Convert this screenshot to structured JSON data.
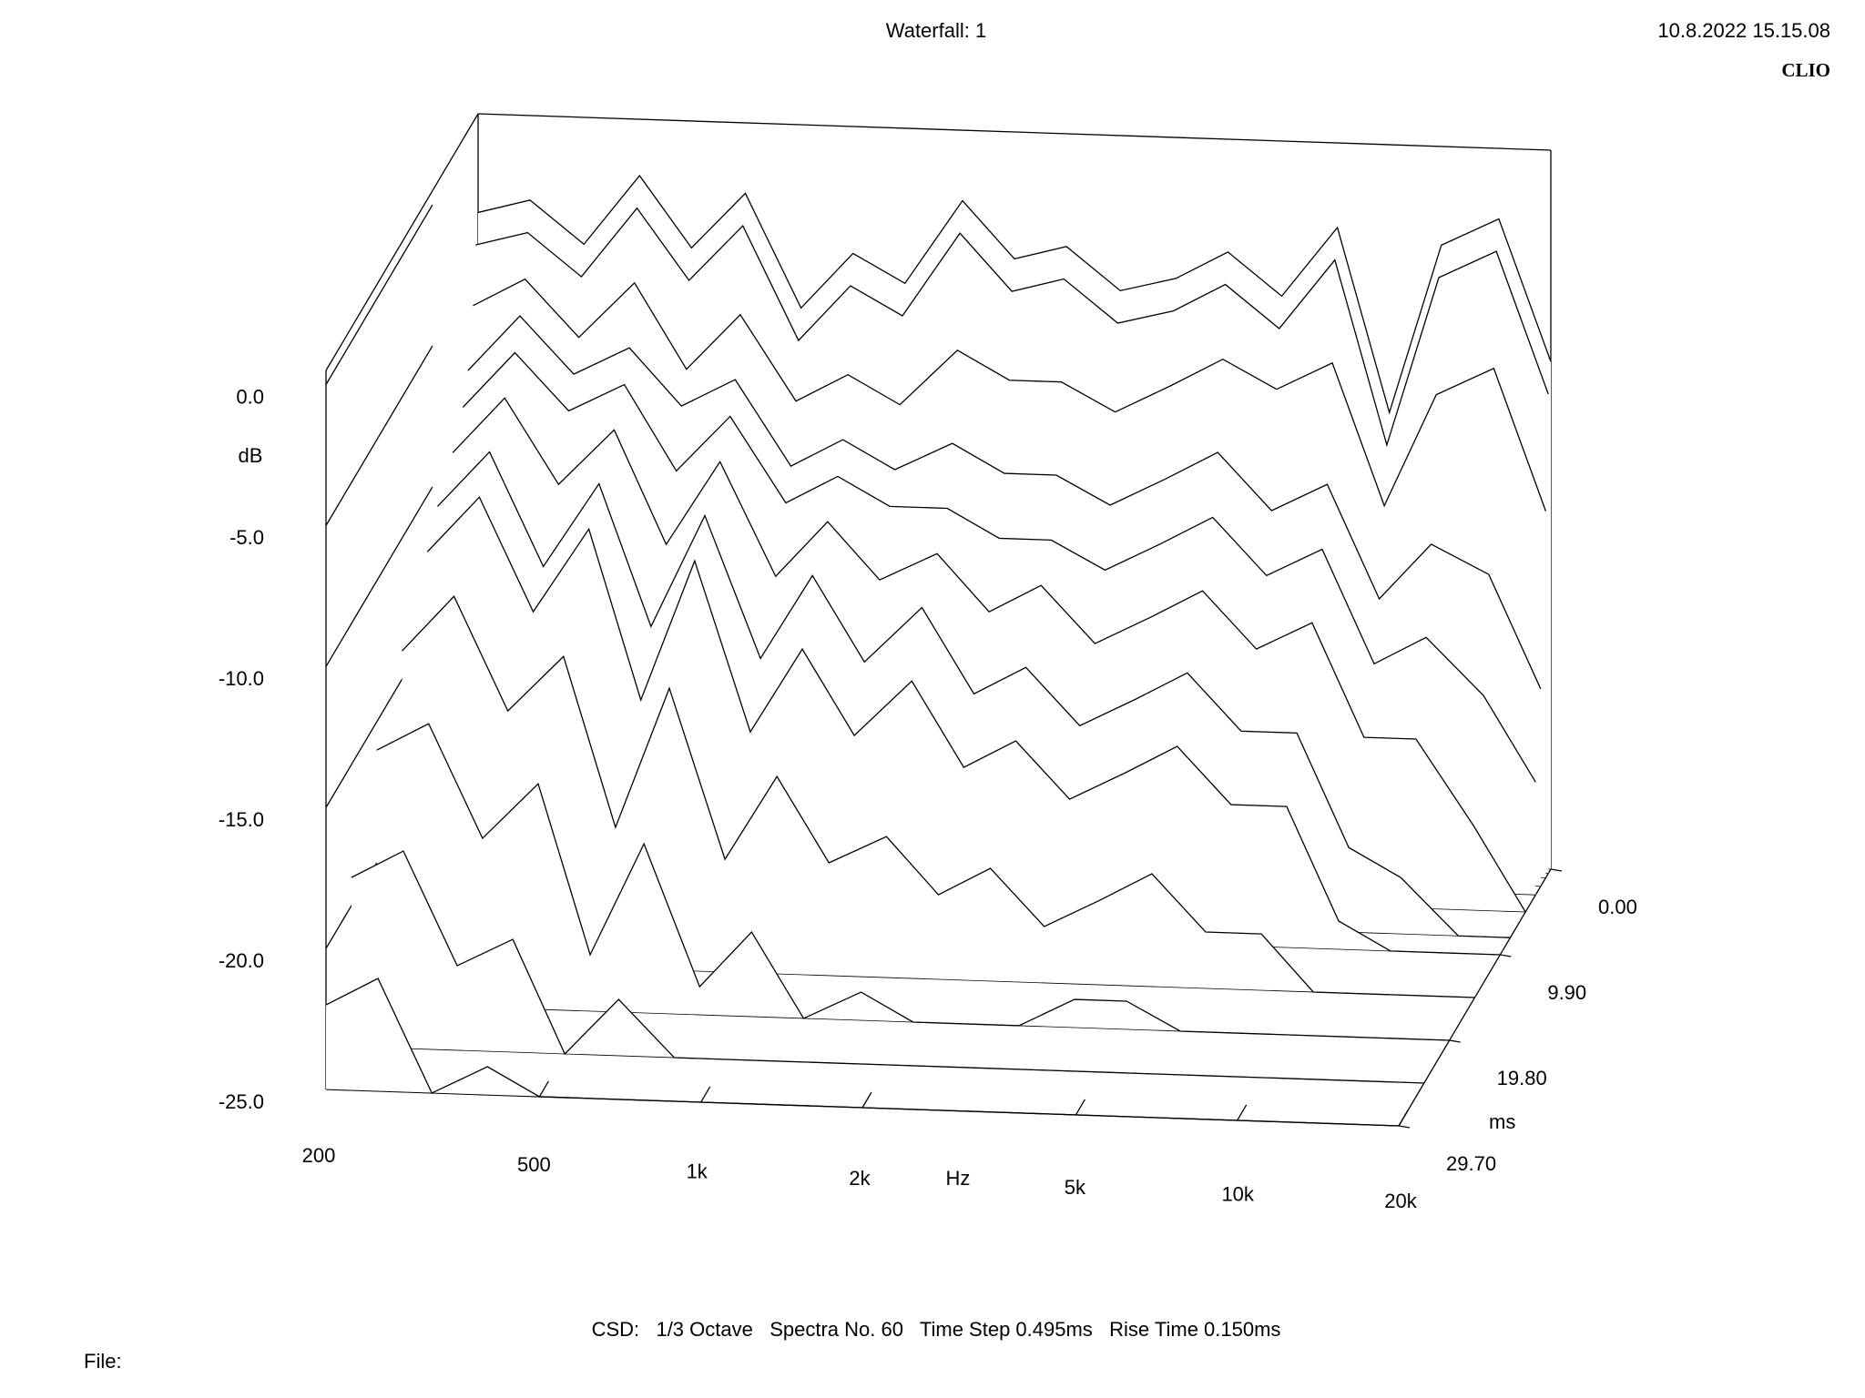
{
  "chart_data": {
    "type": "waterfall",
    "title": "Waterfall: 1",
    "timestamp": "10.8.2022 15.15.08",
    "brand": "CLIO",
    "y_label": "dB",
    "x_label": "Hz",
    "z_label": "ms",
    "footer": "CSD:   1/3 Octave   Spectra No. 60   Time Step 0.495ms   Rise Time 0.150ms",
    "file_label": "File:",
    "log_x": true,
    "xlim": [
      200,
      20000
    ],
    "xticks": [
      200,
      500,
      {
        "value": 1000,
        "label": "1k"
      },
      {
        "value": 2000,
        "label": "2k"
      },
      {
        "value": 5000,
        "label": "5k"
      },
      {
        "value": 10000,
        "label": "10k"
      },
      {
        "value": 20000,
        "label": "20k"
      }
    ],
    "ylim": [
      -25,
      0.5
    ],
    "yticks": [
      {
        "value": 0,
        "label": "0.0"
      },
      {
        "value": -5,
        "label": "-5.0"
      },
      {
        "value": -10,
        "label": "-10.0"
      },
      {
        "value": -15,
        "label": "-15.0"
      },
      {
        "value": -20,
        "label": "-20.0"
      },
      {
        "value": -25,
        "label": "-25.0"
      }
    ],
    "zlim": [
      0,
      29.7
    ],
    "zticks": [
      {
        "value": 0,
        "label": "0.00"
      },
      {
        "value": 9.9,
        "label": "9.90"
      },
      {
        "value": 19.8,
        "label": "19.80"
      },
      {
        "value": 29.7,
        "label": "29.70"
      }
    ],
    "color": "#000000",
    "x": [
      200,
      250,
      315,
      400,
      500,
      630,
      800,
      1000,
      1250,
      1600,
      2000,
      2500,
      3150,
      4000,
      5000,
      6300,
      8000,
      10000,
      12500,
      16000,
      20000
    ],
    "z": [
      0,
      0.495,
      0.99,
      1.98,
      2.97,
      4.95,
      7.92,
      9.9,
      14.85,
      19.8,
      24.75,
      29.7
    ],
    "spectra": [
      [
        -3,
        -2.5,
        -4,
        -1.5,
        -4,
        -2,
        -6,
        -4,
        -5,
        -2,
        -4,
        -3.5,
        -5,
        -4.5,
        -3.5,
        -5,
        -2.5,
        -9,
        -3,
        -2,
        -7
      ],
      [
        -4,
        -3.5,
        -5,
        -2.5,
        -5,
        -3,
        -7,
        -5,
        -6,
        -3,
        -5,
        -4.5,
        -6,
        -5.5,
        -4.5,
        -6,
        -3.5,
        -10,
        -4,
        -3,
        -8
      ],
      [
        -6,
        -5,
        -7,
        -5,
        -8,
        -6,
        -9,
        -8,
        -9,
        -7,
        -8,
        -8,
        -9,
        -8,
        -7,
        -8,
        -7,
        -12,
        -8,
        -7,
        -12
      ],
      [
        -8,
        -6,
        -8,
        -7,
        -9,
        -8,
        -11,
        -10,
        -11,
        -10,
        -11,
        -11,
        -12,
        -11,
        -10,
        -12,
        -11,
        -15,
        -13,
        -14,
        -18
      ],
      [
        -9,
        -7,
        -9,
        -8,
        -11,
        -9,
        -12,
        -11,
        -12,
        -12,
        -13,
        -13,
        -14,
        -13,
        -12,
        -14,
        -13,
        -17,
        -16,
        -18,
        -21
      ],
      [
        -10,
        -8,
        -11,
        -9,
        -13,
        -10,
        -14,
        -12,
        -14,
        -13,
        -15,
        -14,
        -16,
        -15,
        -14,
        -16,
        -15,
        -19,
        -19,
        -22,
        -25
      ],
      [
        -11,
        -9,
        -13,
        -10,
        -15,
        -11,
        -16,
        -13,
        -16,
        -14,
        -17,
        -16,
        -18,
        -17,
        -16,
        -18,
        -18,
        -22,
        -23,
        -25,
        -25
      ],
      [
        -12,
        -10,
        -14,
        -11,
        -17,
        -12,
        -18,
        -15,
        -18,
        -16,
        -19,
        -18,
        -20,
        -19,
        -18,
        -20,
        -20,
        -24,
        -25,
        -25,
        -25
      ],
      [
        -14,
        -12,
        -16,
        -14,
        -20,
        -15,
        -21,
        -18,
        -21,
        -20,
        -22,
        -21,
        -23,
        -22,
        -21,
        -23,
        -23,
        -25,
        -25,
        -25,
        -25
      ],
      [
        -16,
        -15,
        -19,
        -17,
        -23,
        -19,
        -24,
        -22,
        -25,
        -24,
        -25,
        -25,
        -25,
        -24,
        -24,
        -25,
        -25,
        -25,
        -25,
        -25,
        -25
      ],
      [
        -19,
        -18,
        -22,
        -21,
        -25,
        -23,
        -25,
        -25,
        -25,
        -25,
        -25,
        -25,
        -25,
        -25,
        -25,
        -25,
        -25,
        -25,
        -25,
        -25,
        -25
      ],
      [
        -22,
        -21,
        -25,
        -24,
        -25,
        -25,
        -25,
        -25,
        -25,
        -25,
        -25,
        -25,
        -25,
        -25,
        -25,
        -25,
        -25,
        -25,
        -25,
        -25,
        -25
      ]
    ]
  }
}
